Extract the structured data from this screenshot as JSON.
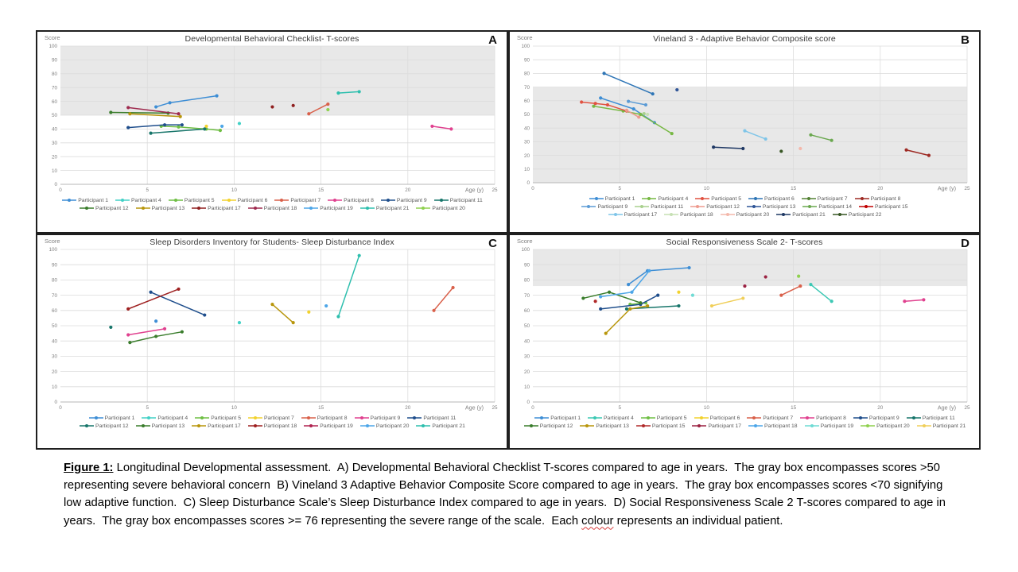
{
  "figure": {
    "caption": {
      "label": "Figure 1:",
      "part1": " Longitudinal Developmental assessment.  A) Developmental Behavioral Checklist T-scores compared to age in years.  The gray box encompasses scores >50 representing severe behavioral concern  B) Vineland 3 Adaptive Behavior Composite Score compared to age in years.  The gray box encompasses scores <70 signifying low adaptive function.  C) Sleep Disturbance Scale’s Sleep Disturbance Index compared to age in years.  D) Social Responsiveness Scale 2 T-scores compared to age in years.  The gray box encompasses scores >= 76 representing the severe range of the scale.  Each ",
      "misspelled_word": "colour",
      "part2": " represents an individual patient."
    },
    "colors": {
      "gray_band": "#e8e8e8",
      "gridline": "#dcdcdc",
      "axis": "#b7b7b7",
      "tick_text": "#7f7f7f",
      "legend_text": "#595959",
      "title_text": "#3a3a3a",
      "panel_border": "#1f1f1f",
      "squiggle": "#d83b3b"
    }
  },
  "chart_data": [
    {
      "panel": "A",
      "type": "line",
      "title": "Developmental Behavioral Checklist- T-scores",
      "ylabel": "Score",
      "xlabel": "Age (y)",
      "xlim": [
        0,
        25
      ],
      "ylim": [
        0,
        100
      ],
      "xticks": [
        0,
        5,
        10,
        15,
        20,
        25
      ],
      "yticks": [
        0,
        10,
        20,
        30,
        40,
        50,
        60,
        70,
        80,
        90,
        100
      ],
      "grid": true,
      "gray_band": [
        50,
        100
      ],
      "legend_position": "bottom",
      "legend_per_row": 8,
      "series": [
        {
          "name": "Participant 1",
          "color": "#3e8ed5",
          "points": [
            [
              5.5,
              56
            ],
            [
              6.3,
              59
            ],
            [
              9,
              64
            ]
          ]
        },
        {
          "name": "Participant 4",
          "color": "#42d1c6",
          "points": [
            [
              10.3,
              44
            ]
          ]
        },
        {
          "name": "Participant 5",
          "color": "#6fbf44",
          "points": [
            [
              5.8,
              42
            ],
            [
              6.8,
              41.5
            ],
            [
              8.4,
              40
            ],
            [
              9.2,
              39
            ]
          ]
        },
        {
          "name": "Participant 6",
          "color": "#f2d22e",
          "points": [
            [
              8.4,
              42
            ]
          ]
        },
        {
          "name": "Participant 7",
          "color": "#d9604a",
          "points": [
            [
              14.3,
              51
            ],
            [
              15.4,
              58
            ]
          ]
        },
        {
          "name": "Participant 8",
          "color": "#e0418f",
          "points": [
            [
              21.4,
              42
            ],
            [
              22.5,
              40
            ]
          ]
        },
        {
          "name": "Participant 9",
          "color": "#1f4e8c",
          "points": [
            [
              3.9,
              41
            ],
            [
              6,
              43
            ],
            [
              7,
              43
            ]
          ]
        },
        {
          "name": "Participant 11",
          "color": "#17756a",
          "points": [
            [
              5.2,
              37
            ],
            [
              8.3,
              40
            ]
          ]
        },
        {
          "name": "Participant 12",
          "color": "#3a7d2c",
          "points": [
            [
              2.9,
              52
            ],
            [
              6.2,
              51.5
            ]
          ]
        },
        {
          "name": "Participant 13",
          "color": "#b8960c",
          "points": [
            [
              4,
              51
            ],
            [
              6.9,
              49
            ]
          ]
        },
        {
          "name": "Participant 17",
          "color": "#8f1f1f",
          "connect": false,
          "points": [
            [
              12.2,
              56
            ],
            [
              13.4,
              57
            ]
          ]
        },
        {
          "name": "Participant 18",
          "color": "#9e2a4e",
          "points": [
            [
              3.9,
              55.5
            ],
            [
              6.8,
              51
            ]
          ]
        },
        {
          "name": "Participant 19",
          "color": "#4da6e8",
          "points": [
            [
              9.3,
              42
            ]
          ]
        },
        {
          "name": "Participant 21",
          "color": "#2ebfae",
          "points": [
            [
              16,
              66
            ],
            [
              17.2,
              67
            ]
          ]
        },
        {
          "name": "Participant 20",
          "color": "#8fd14f",
          "points": [
            [
              15.4,
              54
            ]
          ]
        }
      ]
    },
    {
      "panel": "B",
      "type": "line",
      "title": "Vineland 3 - Adaptive Behavior Composite score",
      "ylabel": "Score",
      "xlabel": "Age (y)",
      "xlim": [
        0,
        25
      ],
      "ylim": [
        0,
        100
      ],
      "xticks": [
        0,
        5,
        10,
        15,
        20,
        25
      ],
      "yticks": [
        0,
        10,
        20,
        30,
        40,
        50,
        60,
        70,
        80,
        90,
        100
      ],
      "grid": true,
      "gray_band": [
        0,
        70
      ],
      "legend_position": "bottom",
      "legend_per_row": 6,
      "series": [
        {
          "name": "Participant 1",
          "color": "#3e8ed5",
          "points": [
            [
              3.9,
              62
            ],
            [
              5.8,
              54
            ],
            [
              7,
              44
            ]
          ]
        },
        {
          "name": "Participant 4",
          "color": "#77b843",
          "points": [
            [
              3.5,
              56
            ],
            [
              5.2,
              52.5
            ],
            [
              6.2,
              50
            ],
            [
              8,
              36
            ]
          ]
        },
        {
          "name": "Participant 5",
          "color": "#e15241",
          "points": [
            [
              2.8,
              59
            ],
            [
              3.6,
              58
            ],
            [
              4.3,
              57
            ],
            [
              5.4,
              52.5
            ]
          ]
        },
        {
          "name": "Participant 6",
          "color": "#2e75b6",
          "points": [
            [
              4.1,
              80
            ],
            [
              6.9,
              65
            ]
          ]
        },
        {
          "name": "Participant 7",
          "color": "#548235",
          "points": []
        },
        {
          "name": "Participant 8",
          "color": "#9e2b25",
          "points": [
            [
              21.5,
              24
            ],
            [
              22.8,
              20
            ]
          ]
        },
        {
          "name": "Participant 9",
          "color": "#5b9bd5",
          "points": [
            [
              5.5,
              59.5
            ],
            [
              6.5,
              57
            ]
          ]
        },
        {
          "name": "Participant 11",
          "color": "#a9d18e",
          "points": [
            [
              6.4,
              50.5
            ]
          ]
        },
        {
          "name": "Participant 12",
          "color": "#ed9a8e",
          "points": [
            [
              5.4,
              53
            ],
            [
              6.1,
              48
            ]
          ]
        },
        {
          "name": "Participant 13",
          "color": "#2f5597",
          "points": [
            [
              8.3,
              68
            ]
          ]
        },
        {
          "name": "Participant 14",
          "color": "#6aa84f",
          "points": [
            [
              16,
              35
            ],
            [
              17.2,
              31
            ]
          ]
        },
        {
          "name": "Participant 15",
          "color": "#c00000",
          "points": []
        },
        {
          "name": "Participant 17",
          "color": "#7fc5e8",
          "points": [
            [
              12.2,
              38
            ],
            [
              13.4,
              32
            ]
          ]
        },
        {
          "name": "Participant 18",
          "color": "#c6e0b4",
          "points": [
            [
              6.6,
              50
            ]
          ]
        },
        {
          "name": "Participant 20",
          "color": "#f4b8ab",
          "points": [
            [
              15.4,
              25
            ]
          ]
        },
        {
          "name": "Participant 21",
          "color": "#1f3864",
          "points": [
            [
              10.4,
              26
            ],
            [
              12.1,
              25
            ]
          ]
        },
        {
          "name": "Participant 22",
          "color": "#375623",
          "points": [
            [
              14.3,
              23
            ]
          ]
        }
      ]
    },
    {
      "panel": "C",
      "type": "line",
      "title": "Sleep Disorders Inventory for Students- Sleep Disturbance Index",
      "ylabel": "Score",
      "xlabel": "Age (y)",
      "xlim": [
        0,
        25
      ],
      "ylim": [
        0,
        100
      ],
      "xticks": [
        0,
        5,
        10,
        15,
        20,
        25
      ],
      "yticks": [
        0,
        10,
        20,
        30,
        40,
        50,
        60,
        70,
        80,
        90,
        100
      ],
      "grid": true,
      "gray_band": null,
      "legend_position": "bottom",
      "legend_per_row": 7,
      "series": [
        {
          "name": "Participant 1",
          "color": "#3e8ed5",
          "points": [
            [
              5.5,
              53
            ]
          ]
        },
        {
          "name": "Participant 4",
          "color": "#42d1c6",
          "points": [
            [
              10.3,
              52
            ]
          ]
        },
        {
          "name": "Participant 5",
          "color": "#6fbf44",
          "points": []
        },
        {
          "name": "Participant 7",
          "color": "#f2d22e",
          "points": [
            [
              14.3,
              59
            ]
          ]
        },
        {
          "name": "Participant 8",
          "color": "#d9604a",
          "points": [
            [
              21.5,
              60
            ],
            [
              22.6,
              75
            ]
          ]
        },
        {
          "name": "Participant 9",
          "color": "#e0418f",
          "points": [
            [
              3.9,
              44
            ],
            [
              6,
              48
            ]
          ]
        },
        {
          "name": "Participant 11",
          "color": "#1f4e8c",
          "points": [
            [
              5.2,
              72
            ],
            [
              8.3,
              57
            ]
          ]
        },
        {
          "name": "Participant 12",
          "color": "#17756a",
          "points": [
            [
              2.9,
              49
            ]
          ]
        },
        {
          "name": "Participant 13",
          "color": "#3a7d2c",
          "points": [
            [
              4,
              39
            ],
            [
              5.5,
              43
            ],
            [
              7,
              46
            ]
          ]
        },
        {
          "name": "Participant 17",
          "color": "#b8960c",
          "points": [
            [
              12.2,
              64
            ],
            [
              13.4,
              52
            ]
          ]
        },
        {
          "name": "Participant 18",
          "color": "#9e2020",
          "points": [
            [
              3.9,
              61
            ],
            [
              6.8,
              74
            ]
          ]
        },
        {
          "name": "Participant 19",
          "color": "#b02451",
          "points": []
        },
        {
          "name": "Participant 20",
          "color": "#4da6e8",
          "points": [
            [
              15.3,
              63
            ]
          ]
        },
        {
          "name": "Participant 21",
          "color": "#2ebfae",
          "points": [
            [
              16,
              56
            ],
            [
              17.2,
              96
            ]
          ]
        }
      ]
    },
    {
      "panel": "D",
      "type": "line",
      "title": "Social Responsiveness Scale 2- T-scores",
      "ylabel": "Score",
      "xlabel": "Age (y)",
      "xlim": [
        0,
        25
      ],
      "ylim": [
        0,
        100
      ],
      "xticks": [
        0,
        5,
        10,
        15,
        20,
        25
      ],
      "yticks": [
        0,
        10,
        20,
        30,
        40,
        50,
        60,
        70,
        80,
        90,
        100
      ],
      "grid": true,
      "gray_band": [
        76,
        100
      ],
      "legend_position": "bottom",
      "legend_per_row": 8,
      "series": [
        {
          "name": "Participant 1",
          "color": "#3e8ed5",
          "points": [
            [
              5.5,
              77
            ],
            [
              6.6,
              86
            ],
            [
              9,
              88
            ]
          ]
        },
        {
          "name": "Participant 4",
          "color": "#3cc8b4",
          "points": [
            [
              16,
              77
            ],
            [
              17.2,
              66
            ]
          ]
        },
        {
          "name": "Participant 5",
          "color": "#6fbf44",
          "points": [
            [
              5.6,
              64
            ],
            [
              6.5,
              65
            ]
          ]
        },
        {
          "name": "Participant 6",
          "color": "#f2d22e",
          "points": [
            [
              8.4,
              72
            ]
          ]
        },
        {
          "name": "Participant 7",
          "color": "#d9604a",
          "points": [
            [
              14.3,
              70
            ],
            [
              15.4,
              76
            ]
          ]
        },
        {
          "name": "Participant 8",
          "color": "#e0418f",
          "points": [
            [
              21.4,
              66
            ],
            [
              22.5,
              67
            ]
          ]
        },
        {
          "name": "Participant 9",
          "color": "#1f4e8c",
          "points": [
            [
              3.9,
              61
            ],
            [
              6.2,
              64
            ],
            [
              7.2,
              70
            ]
          ]
        },
        {
          "name": "Participant 11",
          "color": "#17756a",
          "points": [
            [
              5.4,
              61
            ],
            [
              8.4,
              63
            ]
          ]
        },
        {
          "name": "Participant 12",
          "color": "#3a7d2c",
          "points": [
            [
              2.9,
              68
            ],
            [
              4.4,
              72
            ],
            [
              6.2,
              65
            ]
          ]
        },
        {
          "name": "Participant 13",
          "color": "#b8960c",
          "points": [
            [
              4.2,
              45
            ],
            [
              5.6,
              61
            ],
            [
              6.6,
              63
            ]
          ]
        },
        {
          "name": "Participant 15",
          "color": "#b02a2a",
          "points": [
            [
              3.6,
              66
            ]
          ]
        },
        {
          "name": "Participant 17",
          "color": "#9b2242",
          "connect": false,
          "points": [
            [
              12.2,
              76
            ],
            [
              13.4,
              82
            ]
          ]
        },
        {
          "name": "Participant 18",
          "color": "#4da6e8",
          "points": [
            [
              3.9,
              69
            ],
            [
              5.7,
              72
            ],
            [
              6.7,
              86
            ]
          ]
        },
        {
          "name": "Participant 19",
          "color": "#6fdbd4",
          "points": [
            [
              9.2,
              70
            ]
          ]
        },
        {
          "name": "Participant 20",
          "color": "#8fd14f",
          "points": [
            [
              15.3,
              82.5
            ]
          ]
        },
        {
          "name": "Participant 21",
          "color": "#f0cf5a",
          "points": [
            [
              10.3,
              63
            ],
            [
              12.1,
              68
            ]
          ]
        }
      ]
    }
  ]
}
